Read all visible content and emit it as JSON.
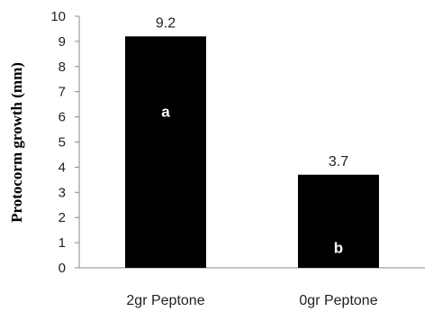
{
  "chart_data": {
    "type": "bar",
    "categories": [
      "2gr Peptone",
      "0gr Peptone"
    ],
    "values": [
      9.2,
      3.7
    ],
    "value_labels": [
      "9.2",
      "3.7"
    ],
    "group_letters": [
      "a",
      "b"
    ],
    "ylabel": "Protocorm growth (mm)",
    "xlabel": "",
    "ylim": [
      0,
      10
    ],
    "yticks": [
      "0",
      "1",
      "2",
      "3",
      "4",
      "5",
      "6",
      "7",
      "8",
      "9",
      "10"
    ],
    "grid": false,
    "legend": "none",
    "bar_color": "#000000",
    "axis_color": "#8a8a8a"
  }
}
